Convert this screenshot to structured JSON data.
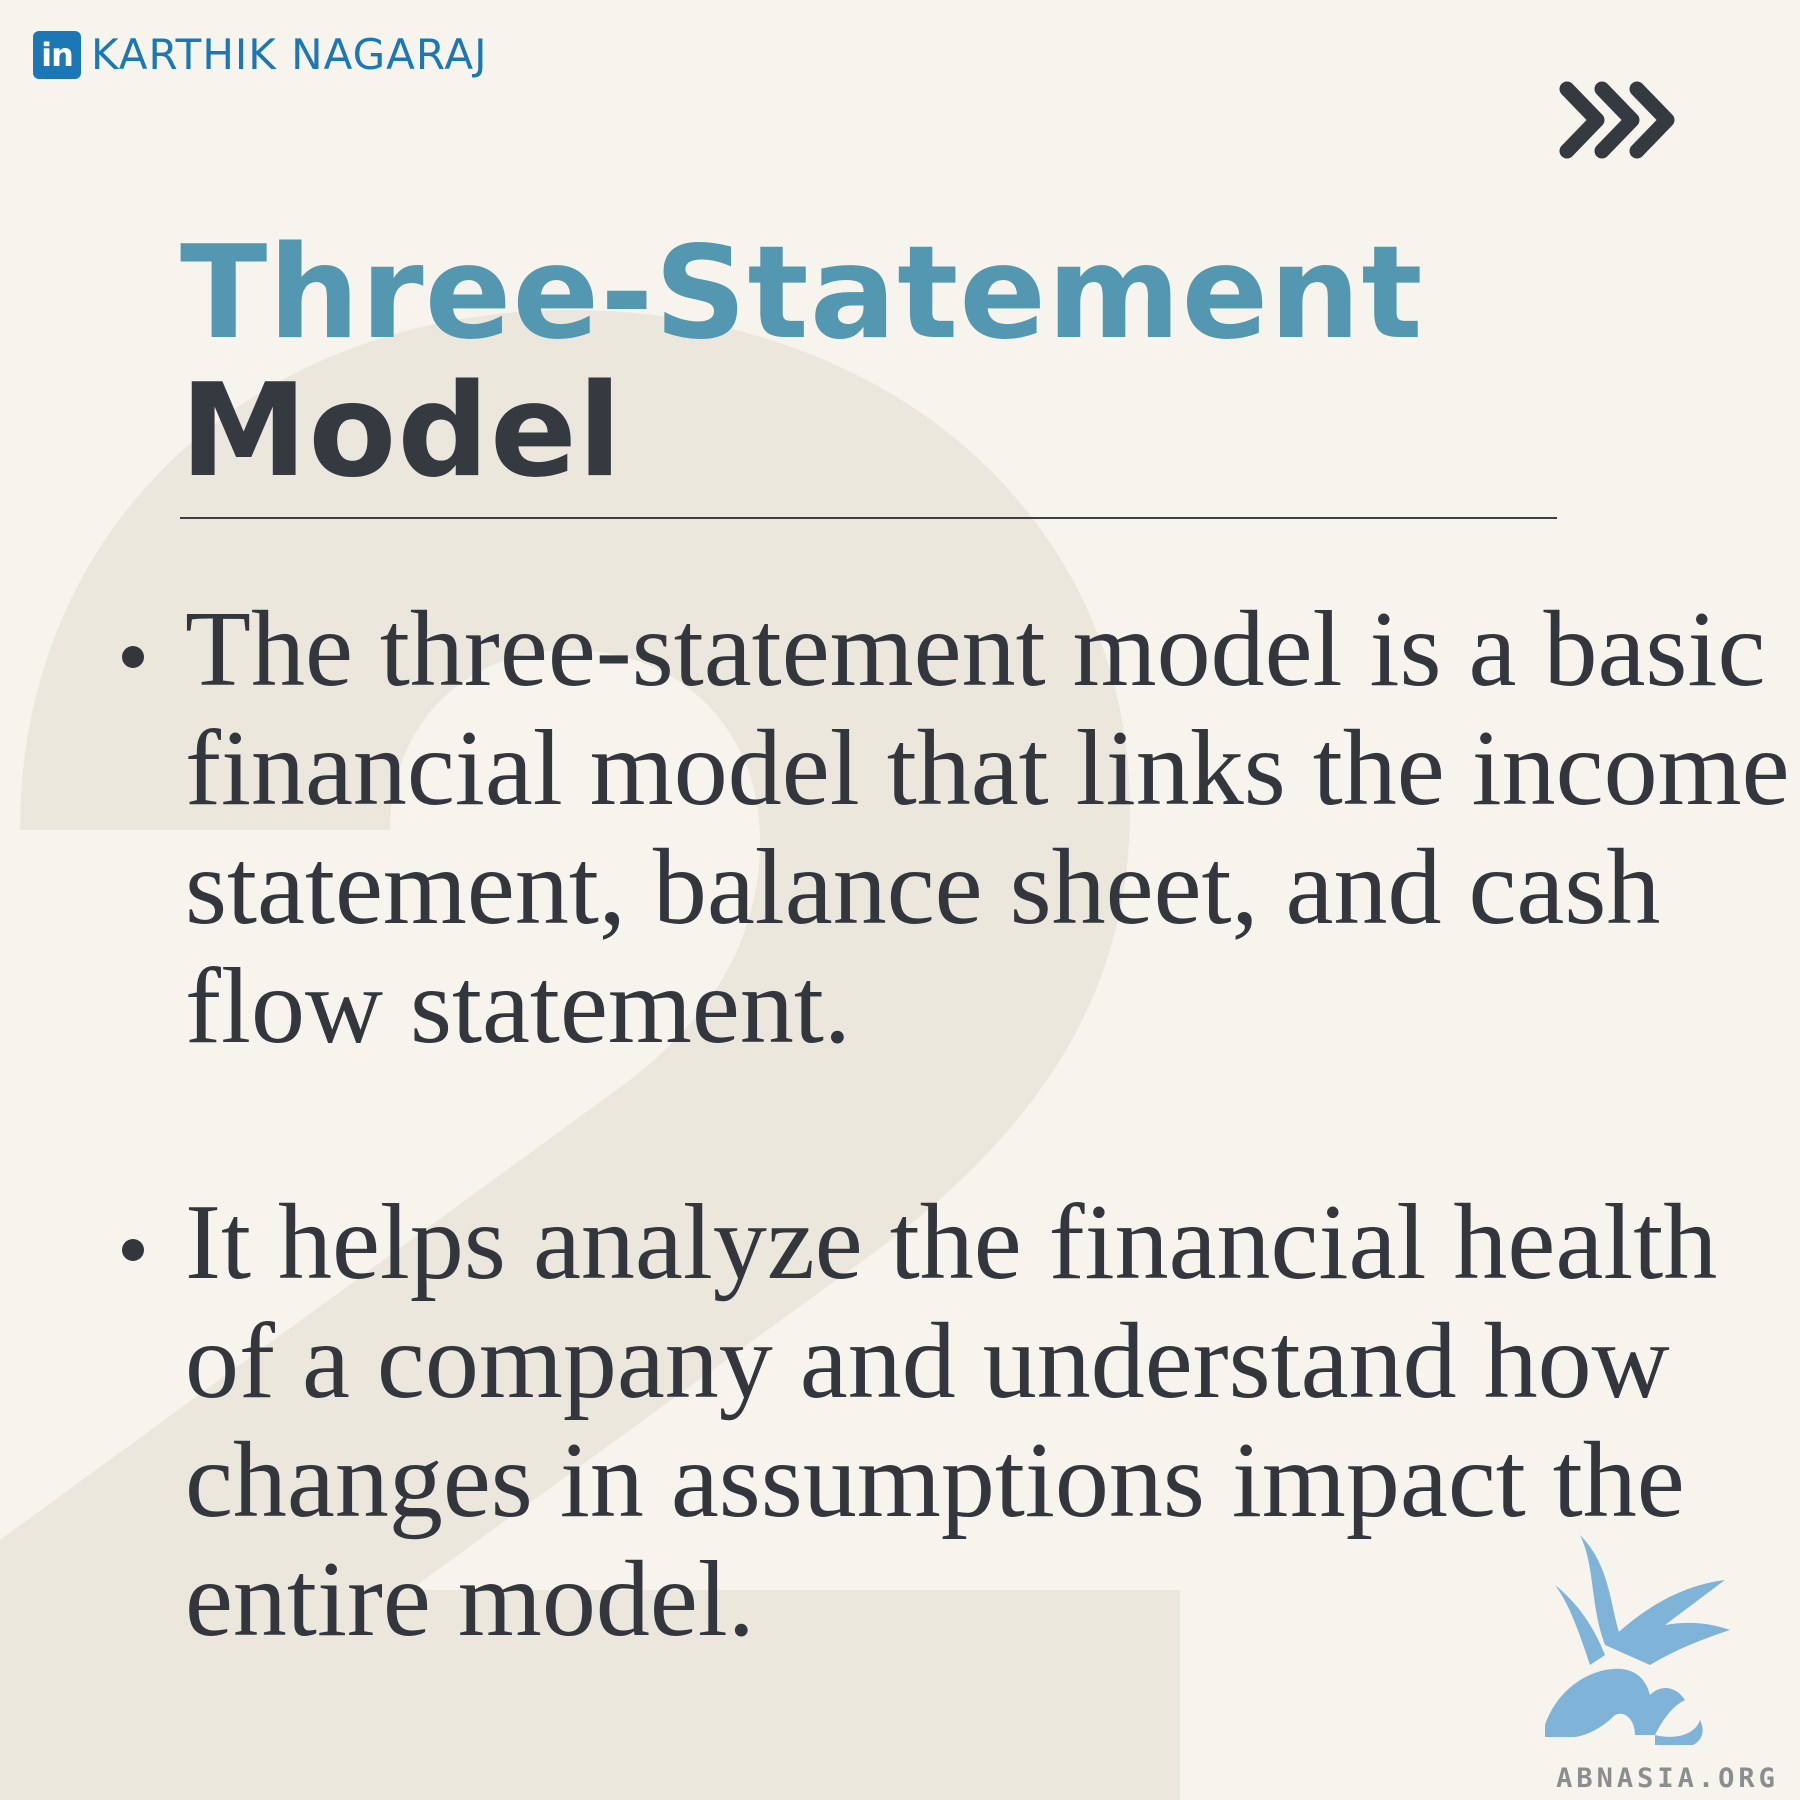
{
  "header": {
    "linkedin_badge": "in",
    "author": "KARTHIK NAGARAJ"
  },
  "title": {
    "line1": "Three-Statement",
    "line2": "Model"
  },
  "bullets": [
    {
      "text": "The three-statement model is a basic financial model that links the income statement, balance sheet, and cash flow statement."
    },
    {
      "text": "It helps analyze the financial health of a company and understand how changes in assumptions impact the entire model."
    }
  ],
  "watermark": {
    "text": "ABNASIA.ORG"
  },
  "icons": {
    "next": "triple-chevron-right-icon",
    "linkedin": "linkedin-icon",
    "watermark_logo": "griffin-logo-icon"
  },
  "colors": {
    "background": "#f6f4ec",
    "accent": "#5497b0",
    "text": "#353a41",
    "linkedin": "#1b77b5",
    "background_number": "#ebe7dd"
  }
}
